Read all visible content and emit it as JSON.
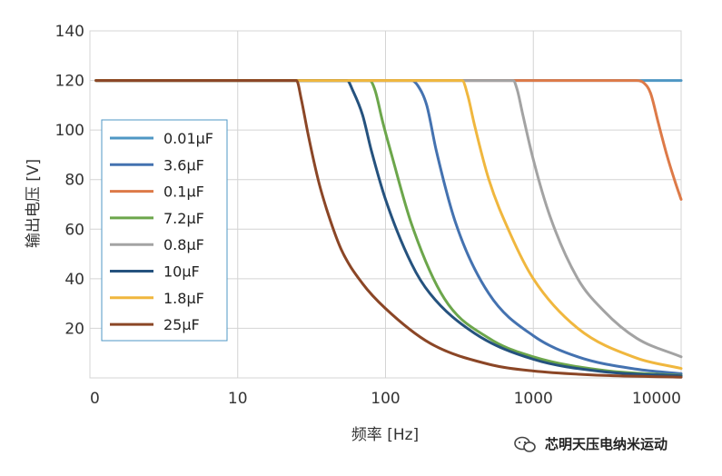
{
  "chart_data": {
    "type": "line",
    "xlabel": "频率 [Hz]",
    "ylabel": "输出电压 [V]",
    "x_scale": "log",
    "xlim": [
      1,
      10000
    ],
    "ylim": [
      0,
      140
    ],
    "x_ticks": [
      "0",
      "10",
      "100",
      "1000",
      "10000"
    ],
    "y_ticks": [
      "20",
      "40",
      "60",
      "80",
      "100",
      "120",
      "140"
    ],
    "grid": true,
    "legend_position": "center-left",
    "series": [
      {
        "name": "0.01μF",
        "color": "#4f97c4",
        "x": [
          1.1,
          10,
          100,
          1000,
          10000
        ],
        "y": [
          120,
          120,
          120,
          120,
          120
        ]
      },
      {
        "name": "3.6μF",
        "color": "#4472b0",
        "x": [
          1.1,
          150,
          165,
          190,
          220,
          300,
          500,
          1000,
          2000,
          5000,
          10000
        ],
        "y": [
          120,
          120,
          118,
          110,
          92,
          62,
          34,
          17,
          8.5,
          3.5,
          1.7
        ]
      },
      {
        "name": "0.1μF",
        "color": "#dd7a48",
        "x": [
          1.1,
          1000,
          5000,
          5600,
          6200,
          7000,
          8000,
          9000,
          10000
        ],
        "y": [
          120,
          120,
          120,
          119,
          115,
          103,
          90,
          80,
          72
        ]
      },
      {
        "name": "7.2μF",
        "color": "#6ca64b",
        "x": [
          1.1,
          78,
          85,
          95,
          110,
          150,
          250,
          500,
          1000,
          3000,
          10000
        ],
        "y": [
          120,
          120,
          116,
          104,
          90,
          62,
          32,
          16,
          8.5,
          3,
          1
        ]
      },
      {
        "name": "0.8μF",
        "color": "#a3a3a3",
        "x": [
          1.1,
          730,
          780,
          850,
          1000,
          1300,
          2000,
          3000,
          5000,
          10000
        ],
        "y": [
          120,
          120,
          116,
          106,
          88,
          65,
          40,
          27,
          16,
          8.5
        ]
      },
      {
        "name": "10μF",
        "color": "#25527e",
        "x": [
          1.1,
          55,
          60,
          70,
          80,
          100,
          150,
          200,
          400,
          1000,
          3000,
          10000
        ],
        "y": [
          120,
          120,
          116,
          106,
          92,
          72,
          46,
          34,
          18,
          7.5,
          2.5,
          0.8
        ]
      },
      {
        "name": "1.8μF",
        "color": "#f0b73e",
        "x": [
          1.1,
          330,
          360,
          400,
          500,
          700,
          1000,
          2000,
          5000,
          10000
        ],
        "y": [
          120,
          120,
          114,
          102,
          80,
          58,
          40,
          20,
          8,
          3.8
        ]
      },
      {
        "name": "25μF",
        "color": "#8b4626",
        "x": [
          1.1,
          25,
          27,
          30,
          35,
          40,
          50,
          70,
          100,
          200,
          500,
          1000,
          3000,
          10000
        ],
        "y": [
          120,
          120,
          112,
          98,
          80,
          68,
          52,
          38,
          28,
          14,
          5.5,
          2.8,
          1,
          0.3
        ]
      }
    ]
  },
  "watermark": {
    "text": "芯明天压电纳米运动",
    "icon": "wechat-icon"
  }
}
